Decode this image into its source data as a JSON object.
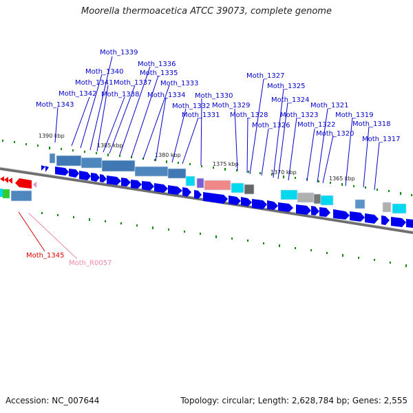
{
  "title": "Moorella thermoacetica ATCC 39073, complete genome",
  "footer": {
    "accession": "Accession: NC_007644",
    "summary": "Topology: circular; Length: 2,628,784 bp; Genes: 2,555"
  },
  "colors": {
    "forward_cds": "#0000ee",
    "reverse_cds": "#ee0000",
    "label_forward": "#0000cc",
    "label_reverse": "#dd0000",
    "label_rna": "#ee88aa",
    "backbone": "#777777",
    "tick": "#008800"
  },
  "kbp_ticks": [
    "1390 kbp",
    "1385 kbp",
    "1380 kbp",
    "1375 kbp",
    "1370 kbp",
    "1365 kbp"
  ],
  "gene_labels": [
    "Moth_1339",
    "Moth_1336",
    "Moth_1340",
    "Moth_1335",
    "Moth_1341",
    "Moth_1337",
    "Moth_1333",
    "Moth_1342",
    "Moth_1338",
    "Moth_1334",
    "Moth_1330",
    "Moth_1343",
    "Moth_1332",
    "Moth_1329",
    "Moth_1331",
    "Moth_1328",
    "Moth_1327",
    "Moth_1325",
    "Moth_1324",
    "Moth_1321",
    "Moth_1323",
    "Moth_1319",
    "Moth_1326",
    "Moth_1322",
    "Moth_1318",
    "Moth_1320",
    "Moth_1317",
    "Moth_1345",
    "Moth_R0057"
  ]
}
